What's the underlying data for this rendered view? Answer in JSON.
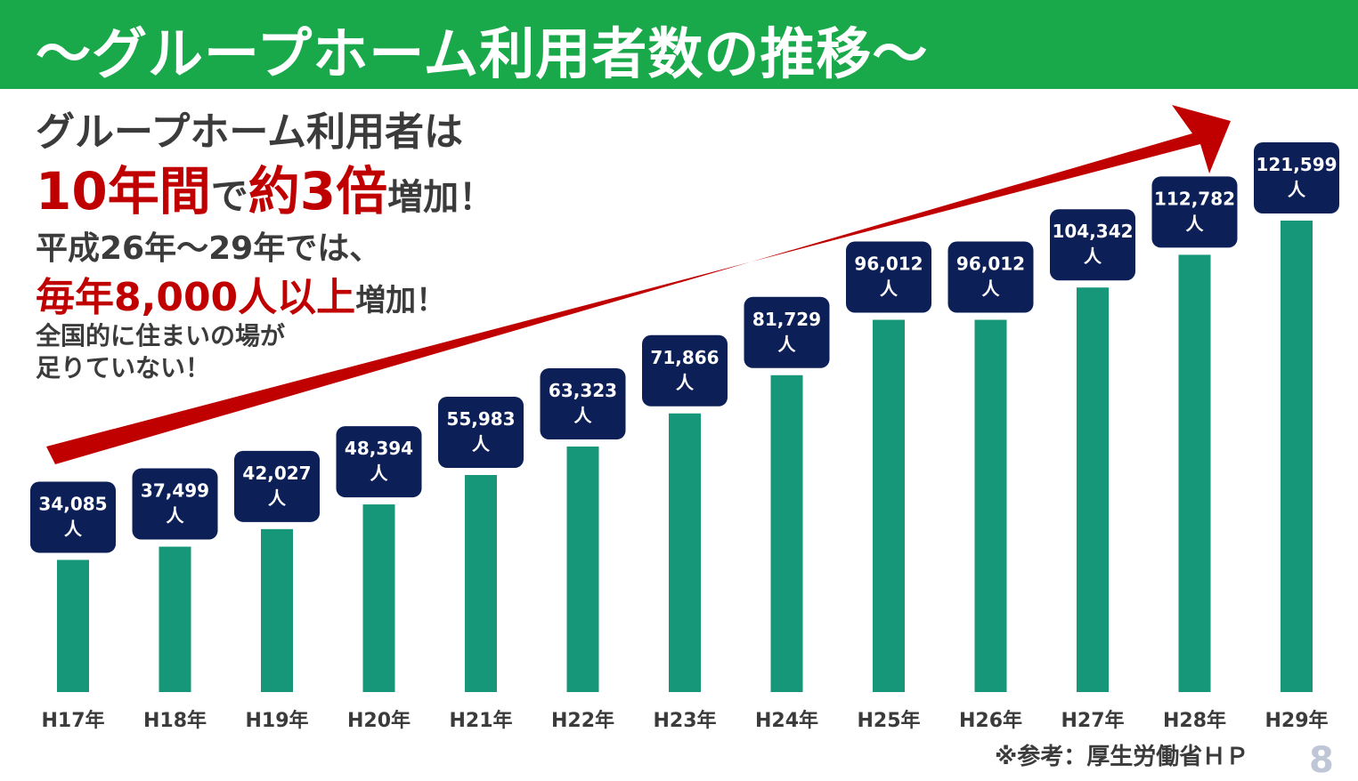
{
  "header": {
    "title": "～グループホーム利用者数の推移～"
  },
  "text": {
    "line1": "グループホーム利用者は",
    "line2_big1": "10年間",
    "line2_de": "で",
    "line2_big2": "約3倍",
    "line2_tail": "増加！",
    "line3": "平成26年～29年では、",
    "line4_red": "毎年8,000人以上",
    "line4_tail": "増加！",
    "line5": "全国的に住まいの場が",
    "line6": "足りていない！"
  },
  "footer": {
    "source": "※参考：厚生労働省ＨＰ",
    "page_number": "8"
  },
  "colors": {
    "header": "#19a94b",
    "bar": "#17977a",
    "label_box": "#0d1f57",
    "arrow": "#c00000",
    "accent_text": "#c00000"
  },
  "chart_data": {
    "type": "bar",
    "categories": [
      "H17年",
      "H18年",
      "H19年",
      "H20年",
      "H21年",
      "H22年",
      "H23年",
      "H24年",
      "H25年",
      "H26年",
      "H27年",
      "H28年",
      "H29年"
    ],
    "values": [
      34085,
      37499,
      42027,
      48394,
      55983,
      63323,
      71866,
      81729,
      96012,
      96012,
      104342,
      112782,
      121599
    ],
    "value_labels": [
      "34,085",
      "37,499",
      "42,027",
      "48,394",
      "55,983",
      "63,323",
      "71,866",
      "81,729",
      "96,012",
      "96,012",
      "104,342",
      "112,782",
      "121,599"
    ],
    "unit": "人",
    "title": "",
    "xlabel": "",
    "ylabel": "",
    "ylim": [
      0,
      125000
    ],
    "grid": false,
    "legend": "none"
  }
}
